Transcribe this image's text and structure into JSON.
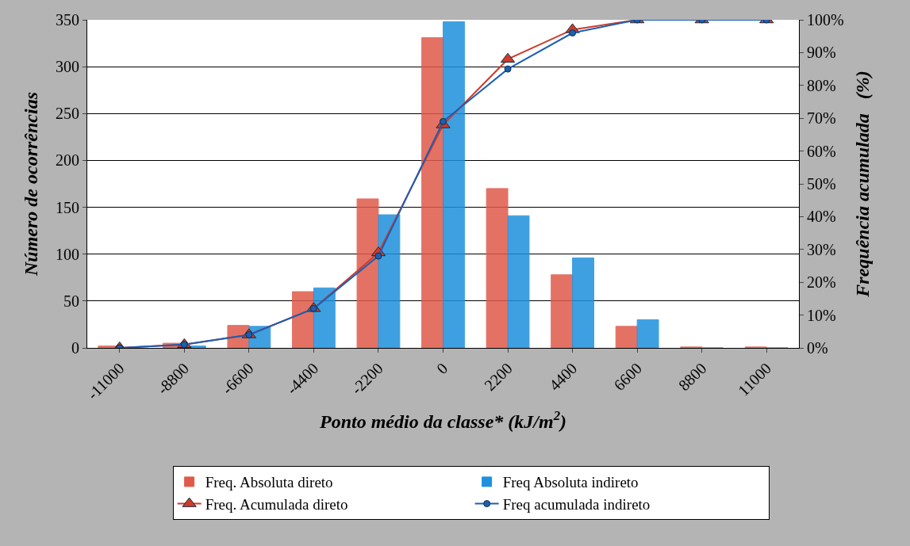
{
  "chart_data": {
    "type": "bar",
    "xlabel": "Ponto médio da classe* (kJ/m$^{2}$)",
    "ylabel": "Número de ocorrências",
    "y2label": "Frequência acumulada   (%)",
    "categories": [
      "-11000",
      "-8800",
      "-6600",
      "-4400",
      "-2200",
      "0",
      "2200",
      "4400",
      "6600",
      "8800",
      "11000"
    ],
    "series": [
      {
        "name": "Freq. Absoluta direto",
        "color": "#e05a4a",
        "values": [
          2,
          5,
          24,
          60,
          159,
          331,
          170,
          78,
          23,
          1,
          1
        ]
      },
      {
        "name": "Freq Absoluta indireto",
        "color": "#1e90dc",
        "values": [
          0,
          2,
          23,
          64,
          142,
          348,
          141,
          96,
          30,
          0,
          0
        ]
      },
      {
        "name": "Freq. Acumulada direto",
        "type": "line",
        "axis": "y2",
        "color": "#d03a2a",
        "marker": "triangle",
        "values": [
          0,
          1,
          4,
          12,
          29,
          68,
          88,
          97,
          100,
          100,
          100
        ]
      },
      {
        "name": "Freq acumulada indireto",
        "type": "line",
        "axis": "y2",
        "color": "#1a5fb4",
        "marker": "circle",
        "values": [
          0,
          1,
          4,
          12,
          28,
          69,
          85,
          96,
          100,
          100,
          100
        ]
      }
    ],
    "ylim": [
      0,
      350
    ],
    "yticks": [
      0,
      50,
      100,
      150,
      200,
      250,
      300,
      350
    ],
    "y2lim": [
      0,
      100
    ],
    "y2ticks": [
      {
        "value": 0,
        "label": "0%"
      },
      {
        "value": 10,
        "label": "10%"
      },
      {
        "value": 20,
        "label": "20%"
      },
      {
        "value": 30,
        "label": "30%"
      },
      {
        "value": 40,
        "label": "40%"
      },
      {
        "value": 50,
        "label": "50%"
      },
      {
        "value": 60,
        "label": "60%"
      },
      {
        "value": 70,
        "label": "70%"
      },
      {
        "value": 80,
        "label": "80%"
      },
      {
        "value": 90,
        "label": "90%"
      },
      {
        "value": 100,
        "label": "100%"
      }
    ],
    "grid": "y",
    "legend": "bottom"
  }
}
